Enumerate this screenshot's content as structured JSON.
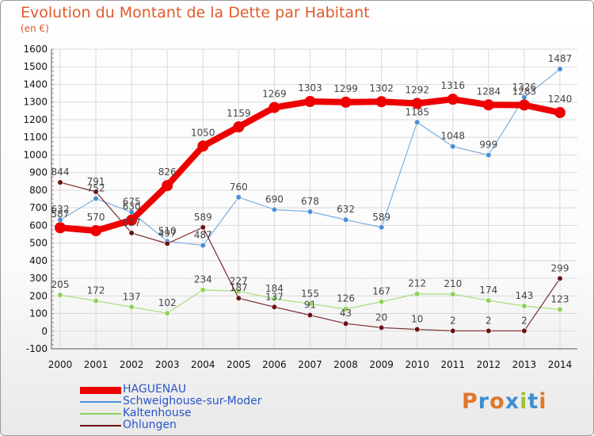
{
  "title": "Evolution du Montant de la Dette par Habitant",
  "subtitle": "(en €)",
  "logo": {
    "text": "Proxiti",
    "colors": [
      "#e0772b",
      "#3f8fd0",
      "#e0772b",
      "#3f8fd0",
      "#9cc23c",
      "#3f8fd0",
      "#e0772b"
    ]
  },
  "chart_data": {
    "type": "line",
    "x": [
      "2000",
      "2001",
      "2002",
      "2003",
      "2004",
      "2005",
      "2006",
      "2007",
      "2008",
      "2009",
      "2010",
      "2011",
      "2012",
      "2013",
      "2014"
    ],
    "y_ticks": [
      "1600",
      "1500",
      "1400",
      "1300",
      "1200",
      "1100",
      "1000",
      "900",
      "800",
      "700",
      "600",
      "500",
      "400",
      "300",
      "200",
      "100",
      "0",
      "-100"
    ],
    "ylim": [
      -100,
      1600
    ],
    "grid": true,
    "legend_position": "bottom-left",
    "series": [
      {
        "name": "Schweighouse-sur-Moder",
        "color": "#4a8ed6",
        "line_color": "#7aaee0",
        "width": 1.2,
        "r": 3.3,
        "values": [
          632,
          752,
          675,
          510,
          487,
          760,
          690,
          678,
          632,
          589,
          1185,
          1048,
          999,
          1326,
          1487
        ],
        "labels": [
          "632",
          "752",
          "675",
          "510",
          "487",
          "760",
          "690",
          "678",
          "632",
          "589",
          "1185",
          "1048",
          "999",
          "1326",
          "1487"
        ]
      },
      {
        "name": "Kaltenhouse",
        "color": "#8fd15a",
        "line_color": "#a6dc7c",
        "width": 1.2,
        "r": 3.3,
        "values": [
          205,
          172,
          137,
          102,
          234,
          227,
          184,
          155,
          126,
          167,
          212,
          210,
          174,
          143,
          123
        ],
        "labels": [
          "205",
          "172",
          "137",
          "102",
          "234",
          "227",
          "184",
          "155",
          "126",
          "167",
          "212",
          "210",
          "174",
          "143",
          "123"
        ]
      },
      {
        "name": "Ohlungen",
        "color": "#6b1212",
        "line_color": "#7a2a2a",
        "width": 1.2,
        "r": 3.3,
        "values": [
          844,
          791,
          557,
          497,
          589,
          187,
          137,
          91,
          43,
          20,
          10,
          2,
          2,
          2,
          299
        ],
        "labels": [
          "844",
          "791",
          "557",
          "497",
          "589",
          "187",
          "137",
          "91",
          "43",
          "20",
          "10",
          "2",
          "2",
          "2",
          "299"
        ]
      },
      {
        "name": "HAGUENAU",
        "color": "#ee0000",
        "line_color": "#ee0000",
        "width": 8,
        "r": 7,
        "values": [
          587,
          570,
          630,
          826,
          1050,
          1159,
          1269,
          1303,
          1299,
          1302,
          1292,
          1316,
          1284,
          1283,
          1240
        ],
        "labels": [
          "587",
          "570",
          "630",
          "826",
          "1050",
          "1159",
          "1269",
          "1303",
          "1299",
          "1302",
          "1292",
          "1316",
          "1284",
          "1283",
          "1240"
        ]
      }
    ]
  },
  "legend": [
    {
      "name": "HAGUENAU",
      "color": "#ee0000",
      "text_color": "#2b55c8",
      "thick": 9
    },
    {
      "name": "Schweighouse-sur-Moder",
      "color": "#4a8ed6",
      "text_color": "#2b55c8",
      "thick": 2
    },
    {
      "name": "Kaltenhouse",
      "color": "#8fd15a",
      "text_color": "#2b55c8",
      "thick": 2
    },
    {
      "name": "Ohlungen",
      "color": "#6b1212",
      "text_color": "#2b55c8",
      "thick": 2
    }
  ]
}
